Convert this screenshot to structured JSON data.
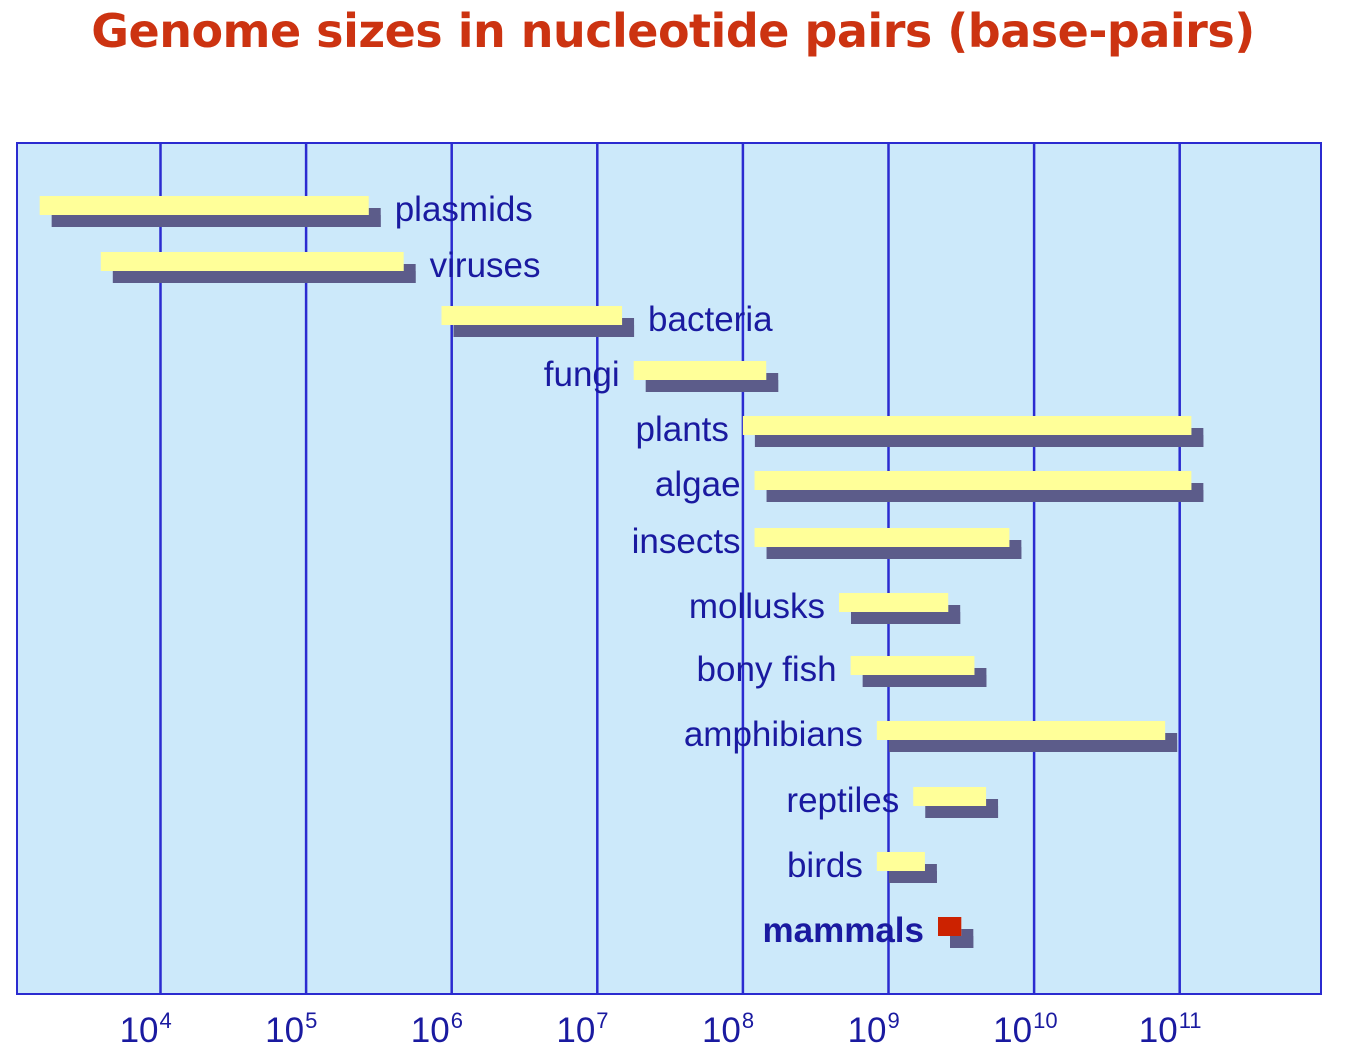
{
  "chart_data": {
    "type": "bar",
    "orientation": "horizontal-range",
    "title": "Genome sizes in nucleotide pairs (base-pairs)",
    "x_scale": "log10",
    "xlim_log10": [
      3,
      12
    ],
    "ticks": [
      {
        "base": "10",
        "exp": "4",
        "log10": 4
      },
      {
        "base": "10",
        "exp": "5",
        "log10": 5
      },
      {
        "base": "10",
        "exp": "6",
        "log10": 6
      },
      {
        "base": "10",
        "exp": "7",
        "log10": 7
      },
      {
        "base": "10",
        "exp": "8",
        "log10": 8
      },
      {
        "base": "10",
        "exp": "9",
        "log10": 9
      },
      {
        "base": "10",
        "exp": "10",
        "log10": 10
      },
      {
        "base": "10",
        "exp": "11",
        "log10": 11
      }
    ],
    "grid": true,
    "colors": {
      "background": "#cce9fa",
      "grid": "#2b2bd0",
      "bar": "#ffff99",
      "shadow": "#5c5c8a",
      "highlight": "#cc2200",
      "text": "#1a1aa0",
      "title": "#cc3311"
    },
    "series": [
      {
        "label": "plasmids",
        "min_log10": 3.17,
        "max_log10": 5.43,
        "label_side": "right",
        "bold": false,
        "highlight": false
      },
      {
        "label": "viruses",
        "min_log10": 3.59,
        "max_log10": 5.67,
        "label_side": "right",
        "bold": false,
        "highlight": false
      },
      {
        "label": "bacteria",
        "min_log10": 5.93,
        "max_log10": 7.17,
        "label_side": "right",
        "bold": false,
        "highlight": false
      },
      {
        "label": "fungi",
        "min_log10": 7.25,
        "max_log10": 8.16,
        "label_side": "left",
        "bold": false,
        "highlight": false
      },
      {
        "label": "plants",
        "min_log10": 8.0,
        "max_log10": 11.08,
        "label_side": "left",
        "bold": false,
        "highlight": false
      },
      {
        "label": "algae",
        "min_log10": 8.08,
        "max_log10": 11.08,
        "label_side": "left",
        "bold": false,
        "highlight": false
      },
      {
        "label": "insects",
        "min_log10": 8.08,
        "max_log10": 9.83,
        "label_side": "left",
        "bold": false,
        "highlight": false
      },
      {
        "label": "mollusks",
        "min_log10": 8.66,
        "max_log10": 9.41,
        "label_side": "left",
        "bold": false,
        "highlight": false
      },
      {
        "label": "bony fish",
        "min_log10": 8.74,
        "max_log10": 9.59,
        "label_side": "left",
        "bold": false,
        "highlight": false
      },
      {
        "label": "amphibians",
        "min_log10": 8.92,
        "max_log10": 10.9,
        "label_side": "left",
        "bold": false,
        "highlight": false
      },
      {
        "label": "reptiles",
        "min_log10": 9.17,
        "max_log10": 9.67,
        "label_side": "left",
        "bold": false,
        "highlight": false
      },
      {
        "label": "birds",
        "min_log10": 8.92,
        "max_log10": 9.25,
        "label_side": "left",
        "bold": false,
        "highlight": false
      },
      {
        "label": "mammals",
        "min_log10": 9.34,
        "max_log10": 9.5,
        "label_side": "left",
        "bold": true,
        "highlight": true
      }
    ]
  }
}
